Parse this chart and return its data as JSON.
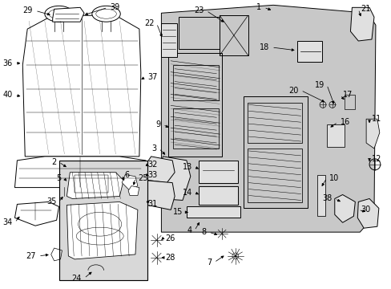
{
  "bg_color": "#ffffff",
  "fig_width": 4.89,
  "fig_height": 3.6,
  "dpi": 100,
  "line_color": "#000000",
  "text_color": "#000000",
  "font_size": 7.0,
  "line_width": 0.7,
  "gray_fill": "#cccccc",
  "light_gray": "#e0e0e0",
  "panel_gray": "#c8c8c8"
}
